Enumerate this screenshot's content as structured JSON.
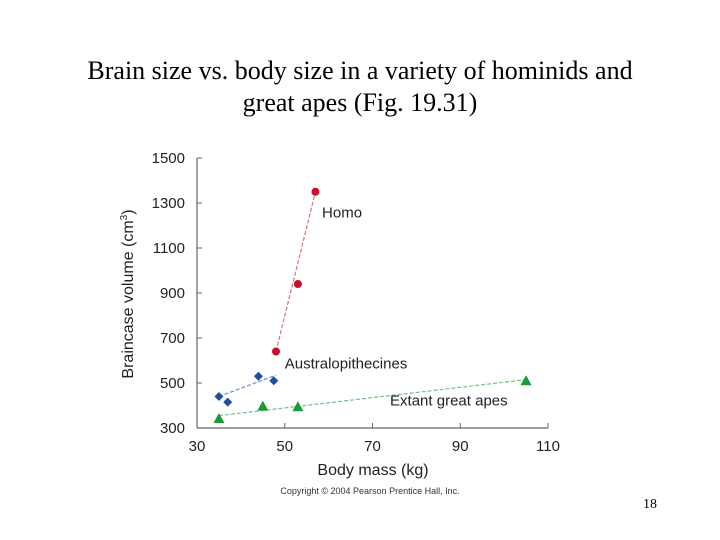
{
  "slide": {
    "title_line1": "Brain size vs. body size in a variety of hominids and",
    "title_line2": "great apes (Fig. 19.31)",
    "page_number": "18",
    "copyright": "Copyright © 2004 Pearson Prentice Hall, Inc."
  },
  "chart_data": {
    "type": "scatter",
    "xlabel": "Body mass (kg)",
    "ylabel_main": "Braincase volume (cm",
    "ylabel_sup": "3",
    "ylabel_end": ")",
    "xlim": [
      30,
      110
    ],
    "ylim": [
      300,
      1500
    ],
    "xticks": [
      30,
      50,
      70,
      90,
      110
    ],
    "yticks": [
      300,
      500,
      700,
      900,
      1100,
      1300,
      1500
    ],
    "grid": false,
    "series": [
      {
        "name": "Homo",
        "marker": "circle",
        "color": "#c8102e",
        "line_color": "#e07070",
        "points": [
          [
            48,
            640
          ],
          [
            53,
            940
          ],
          [
            57,
            1350
          ]
        ],
        "trend": [
          [
            48,
            640
          ],
          [
            57,
            1350
          ]
        ],
        "label_at": [
          58.5,
          1235
        ]
      },
      {
        "name": "Australopithecines",
        "marker": "diamond",
        "color": "#1f4e9c",
        "line_color": "#6a8fcf",
        "points": [
          [
            35,
            440
          ],
          [
            37,
            415
          ],
          [
            44,
            530
          ],
          [
            47.5,
            510
          ]
        ],
        "trend": [
          [
            35,
            440
          ],
          [
            48,
            535
          ]
        ],
        "label_at": [
          50,
          565
        ]
      },
      {
        "name": "Extant great apes",
        "marker": "triangle",
        "color": "#1a9a3a",
        "line_color": "#70c080",
        "points": [
          [
            35,
            340
          ],
          [
            45,
            395
          ],
          [
            53,
            392
          ],
          [
            105,
            508
          ]
        ],
        "trend": [
          [
            35,
            355
          ],
          [
            105,
            515
          ]
        ],
        "label_at": [
          74,
          400
        ]
      }
    ]
  }
}
